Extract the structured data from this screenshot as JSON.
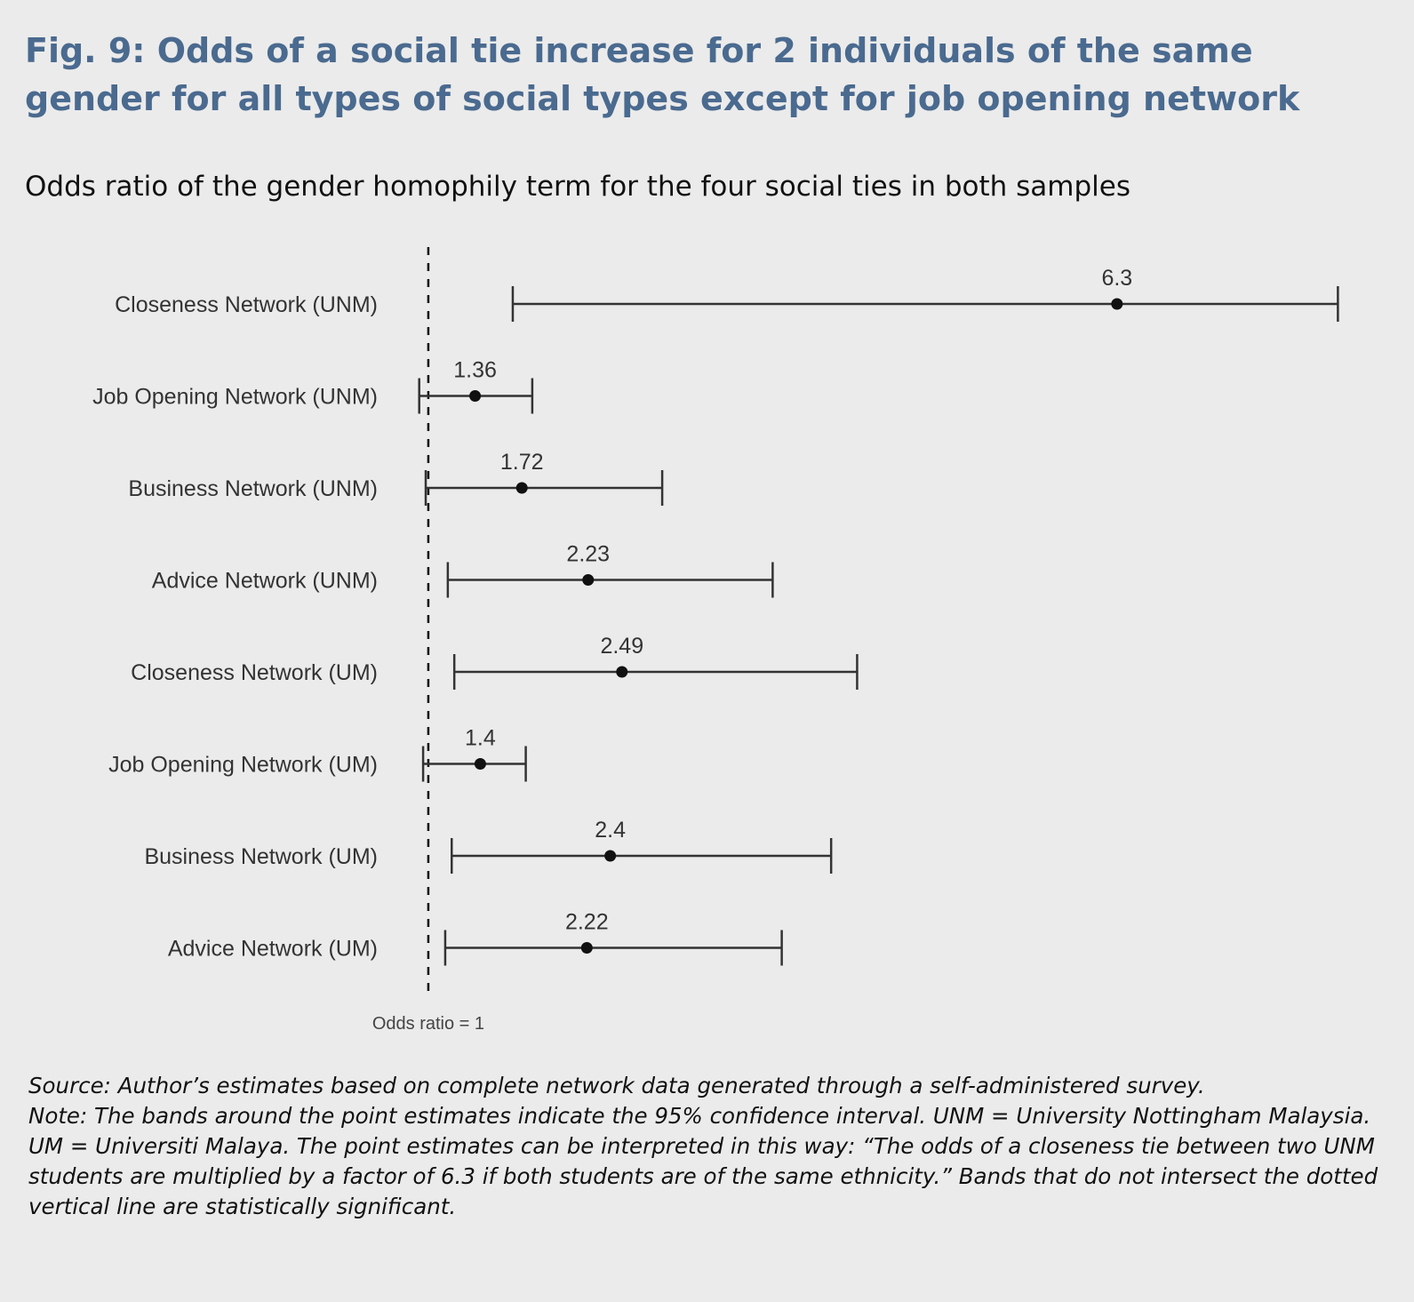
{
  "figure": {
    "title": "Fig. 9: Odds of a social tie increase for 2 individuals of the same gender for all types of social types except for job opening network",
    "subtitle": "Odds ratio of the gender homophily term for the four social ties in both samples",
    "source": "Source: Author’s estimates based on complete network data generated through a self-administered survey.",
    "note": "Note: The bands around the point estimates indicate the 95% confidence interval. UNM = University Nottingham Malaysia. UM = Universiti Malaya. The point estimates can be interpreted in this way: “The odds of a closeness tie between two UNM students are multiplied by a factor of 6.3 if both students are of the same ethnicity.” Bands that do not intersect the dotted vertical line are statistically significant."
  },
  "chart_data": {
    "type": "forest",
    "reference_line": {
      "value": 1,
      "label": "Odds ratio = 1",
      "style": "dotted"
    },
    "xlim": [
      0.85,
      8.1
    ],
    "colors": {
      "line": "#333333",
      "point": "#111111",
      "text": "#333333"
    },
    "rows": [
      {
        "label": "Closeness Network (UNM)",
        "estimate": 6.3,
        "estimate_label": "6.3",
        "lower": 1.65,
        "upper": 8.0
      },
      {
        "label": "Job Opening Network (UNM)",
        "estimate": 1.36,
        "estimate_label": "1.36",
        "lower": 0.93,
        "upper": 1.8
      },
      {
        "label": "Business Network (UNM)",
        "estimate": 1.72,
        "estimate_label": "1.72",
        "lower": 0.98,
        "upper": 2.8
      },
      {
        "label": "Advice Network (UNM)",
        "estimate": 2.23,
        "estimate_label": "2.23",
        "lower": 1.15,
        "upper": 3.65
      },
      {
        "label": "Closeness Network (UM)",
        "estimate": 2.49,
        "estimate_label": "2.49",
        "lower": 1.2,
        "upper": 4.3
      },
      {
        "label": "Job Opening Network (UM)",
        "estimate": 1.4,
        "estimate_label": "1.4",
        "lower": 0.96,
        "upper": 1.75
      },
      {
        "label": "Business Network (UM)",
        "estimate": 2.4,
        "estimate_label": "2.4",
        "lower": 1.18,
        "upper": 4.1
      },
      {
        "label": "Advice Network (UM)",
        "estimate": 2.22,
        "estimate_label": "2.22",
        "lower": 1.13,
        "upper": 3.72
      }
    ]
  }
}
